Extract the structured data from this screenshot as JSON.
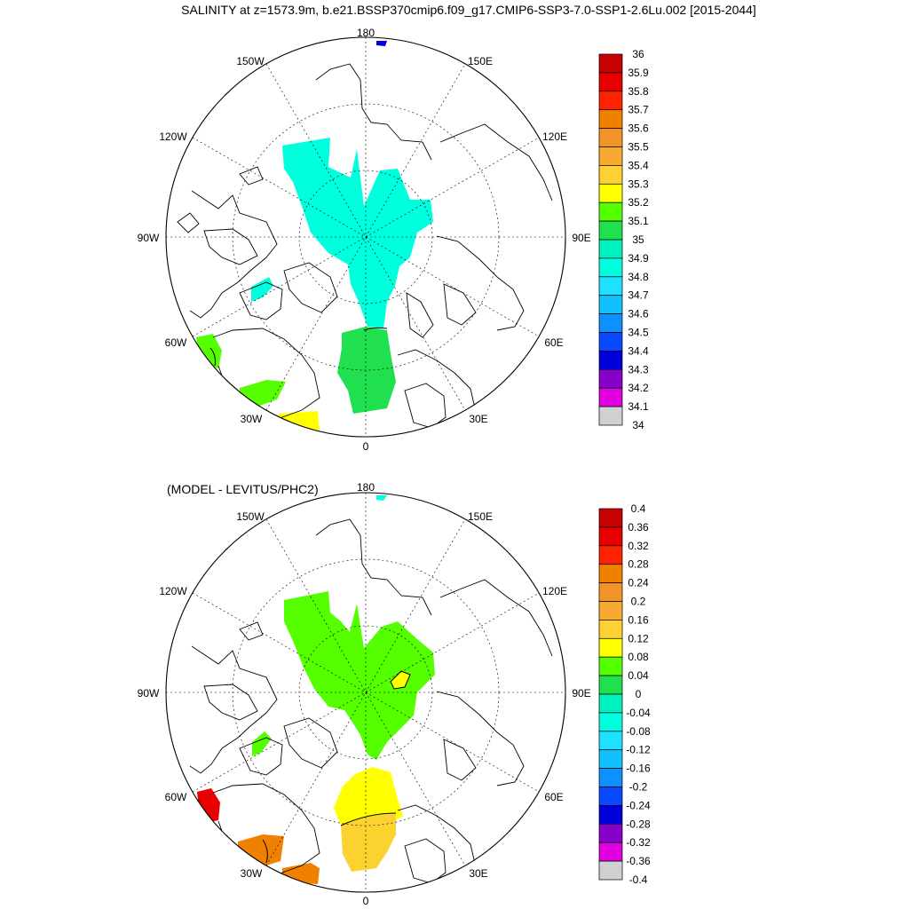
{
  "title": "SALINITY at z=1573.9m, b.e21.BSSP370cmip6.f09_g17.CMIP6-SSP3-7.0-SSP1-2.6Lu.002 [2015-2044]",
  "subtitle": "(MODEL - LEVITUS/PHC2)",
  "longitude_labels": {
    "n": "180",
    "nw1": "150W",
    "ne1": "150E",
    "nw2": "120W",
    "ne2": "120E",
    "w": "90W",
    "e": "90E",
    "sw2": "60W",
    "se2": "60E",
    "sw1": "30W",
    "se1": "30E",
    "s": "0"
  },
  "top_colorbar": {
    "labels": [
      "36",
      "35.9",
      "35.8",
      "35.7",
      "35.6",
      "35.5",
      "35.4",
      "35.3",
      "35.2",
      "35.1",
      "35",
      "34.9",
      "34.8",
      "34.7",
      "34.6",
      "34.5",
      "34.4",
      "34.3",
      "34.2",
      "34.1",
      "34"
    ],
    "colors": [
      "#c80000",
      "#e60000",
      "#ff2200",
      "#f08000",
      "#f5932a",
      "#f7a830",
      "#fcd230",
      "#ffff00",
      "#55ff00",
      "#20e050",
      "#00f0c0",
      "#00ffe0",
      "#20e0ff",
      "#10c0ff",
      "#1090ff",
      "#0a4aff",
      "#0000dd",
      "#8800cc",
      "#e000e0",
      "#d0d0d0"
    ]
  },
  "bottom_colorbar": {
    "labels": [
      "0.4",
      "0.36",
      "0.32",
      "0.28",
      "0.24",
      "0.2",
      "0.16",
      "0.12",
      "0.08",
      "0.04",
      "0",
      "-0.04",
      "-0.08",
      "-0.12",
      "-0.16",
      "-0.2",
      "-0.24",
      "-0.28",
      "-0.32",
      "-0.36",
      "-0.4"
    ],
    "colors": [
      "#c80000",
      "#e60000",
      "#ff2200",
      "#f08000",
      "#f5932a",
      "#f7a830",
      "#fcd230",
      "#ffff00",
      "#55ff00",
      "#20e050",
      "#00f0c0",
      "#00ffe0",
      "#20e0ff",
      "#10c0ff",
      "#1090ff",
      "#0a4aff",
      "#0000dd",
      "#8800cc",
      "#e000e0",
      "#d0d0d0",
      "#707070"
    ]
  },
  "colors": {
    "top_arctic": "#00ffdd",
    "top_atlantic": "#20e050",
    "top_nordic": "#20e050",
    "top_labrador": "#55ff00",
    "top_yellow": "#ffff00",
    "top_small_blue": "#0000dd",
    "diff_arctic": "#55ff00",
    "diff_yellow": "#ffff00",
    "diff_lightorange": "#fcd230",
    "diff_orange": "#f08000",
    "diff_red": "#e60000",
    "diff_cyan": "#00ffe0",
    "top_extra_gray": "#707070"
  }
}
